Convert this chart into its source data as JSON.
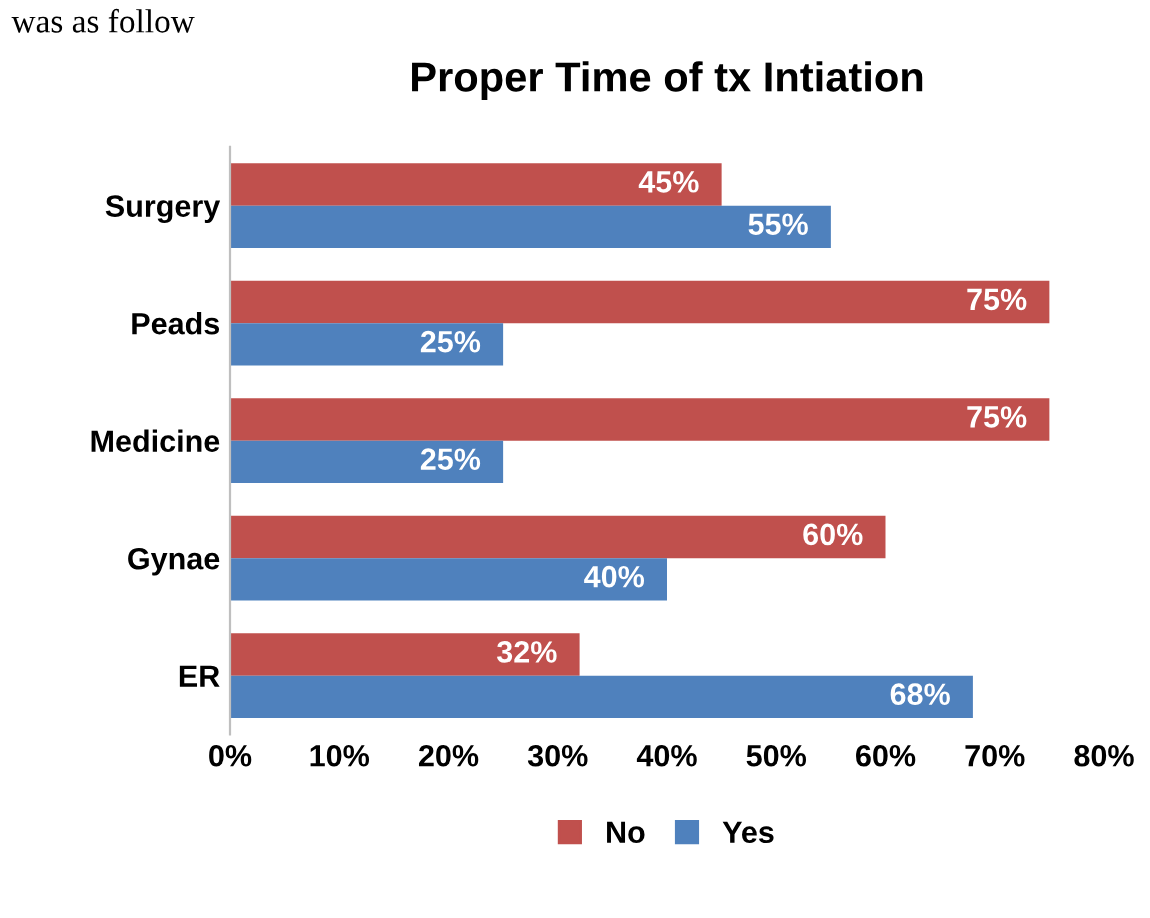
{
  "chart_data": {
    "type": "bar",
    "orientation": "horizontal",
    "title": "Proper Time of tx Intiation",
    "annotations": [
      "was as follow"
    ],
    "categories": [
      "Surgery",
      "Peads",
      "Medicine",
      "Gynae",
      "ER"
    ],
    "series": [
      {
        "name": "No",
        "color": "#c0504d",
        "values": [
          45,
          75,
          75,
          60,
          32
        ],
        "value_labels": [
          "45%",
          "75%",
          "75%",
          "60%",
          "32%"
        ]
      },
      {
        "name": "Yes",
        "color": "#4f81bd",
        "values": [
          55,
          25,
          25,
          40,
          68
        ],
        "value_labels": [
          "55%",
          "25%",
          "25%",
          "40%",
          "68%"
        ]
      }
    ],
    "xlim": [
      0,
      80
    ],
    "xticks": [
      {
        "value": 0,
        "label": "0%"
      },
      {
        "value": 10,
        "label": "10%"
      },
      {
        "value": 20,
        "label": "20%"
      },
      {
        "value": 30,
        "label": "30%"
      },
      {
        "value": 40,
        "label": "40%"
      },
      {
        "value": 50,
        "label": "50%"
      },
      {
        "value": 60,
        "label": "60%"
      },
      {
        "value": 70,
        "label": "70%"
      },
      {
        "value": 80,
        "label": "80%"
      }
    ],
    "grid": false,
    "legend": "bottom"
  }
}
